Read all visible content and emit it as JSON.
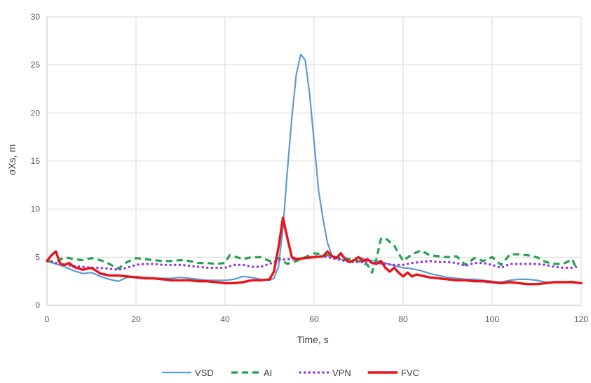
{
  "chart_data": {
    "type": "line",
    "title": "",
    "xlabel": "Time, s",
    "ylabel": "σXs, m",
    "xlim": [
      0,
      120
    ],
    "ylim": [
      0,
      30
    ],
    "xticks": [
      0,
      20,
      40,
      60,
      80,
      100,
      120
    ],
    "yticks": [
      0,
      5,
      10,
      15,
      20,
      25,
      30
    ],
    "grid": true,
    "legend_position": "bottom",
    "series": [
      {
        "name": "VSD",
        "color": "#5b9bd5",
        "style": "solid",
        "x": [
          0,
          2,
          4,
          6,
          8,
          10,
          12,
          14,
          16,
          18,
          20,
          22,
          24,
          26,
          28,
          30,
          32,
          34,
          36,
          38,
          40,
          42,
          44,
          46,
          48,
          50,
          51,
          52,
          53,
          54,
          55,
          56,
          57,
          58,
          59,
          60,
          61,
          62,
          63,
          64,
          66,
          68,
          70,
          72,
          74,
          76,
          78,
          80,
          82,
          84,
          86,
          88,
          90,
          92,
          94,
          96,
          98,
          100,
          102,
          104,
          106,
          108,
          110,
          112,
          114,
          116,
          118,
          120
        ],
        "y": [
          4.6,
          4.3,
          4.0,
          3.6,
          3.3,
          3.4,
          3.0,
          2.7,
          2.5,
          2.9,
          3.0,
          2.9,
          2.8,
          2.8,
          2.8,
          2.9,
          2.8,
          2.7,
          2.6,
          2.6,
          2.6,
          2.7,
          3.0,
          2.9,
          2.7,
          2.6,
          2.8,
          4.0,
          8.0,
          14.0,
          19.5,
          24.0,
          26.1,
          25.5,
          22.0,
          17.0,
          12.0,
          9.0,
          6.5,
          5.2,
          4.8,
          4.5,
          5.0,
          4.7,
          4.6,
          4.4,
          4.1,
          3.9,
          3.8,
          3.6,
          3.3,
          3.1,
          2.9,
          2.8,
          2.7,
          2.7,
          2.6,
          2.5,
          2.4,
          2.6,
          2.7,
          2.7,
          2.6,
          2.4,
          2.4,
          2.4,
          2.5,
          2.3
        ]
      },
      {
        "name": "AI",
        "color": "#22a24a",
        "style": "dashed",
        "x": [
          0,
          2,
          4,
          6,
          8,
          10,
          12,
          14,
          16,
          18,
          20,
          22,
          24,
          26,
          28,
          30,
          32,
          34,
          36,
          38,
          40,
          41,
          42,
          44,
          46,
          48,
          50,
          52,
          54,
          56,
          58,
          60,
          62,
          64,
          66,
          68,
          70,
          72,
          73,
          74,
          75,
          76,
          78,
          80,
          82,
          84,
          86,
          88,
          90,
          92,
          94,
          96,
          98,
          100,
          102,
          104,
          106,
          108,
          110,
          112,
          114,
          116,
          118,
          119
        ],
        "y": [
          4.6,
          4.5,
          5.0,
          4.8,
          4.7,
          4.9,
          4.7,
          4.3,
          3.8,
          4.5,
          4.9,
          4.8,
          4.7,
          4.6,
          4.6,
          4.7,
          4.6,
          4.4,
          4.4,
          4.3,
          4.4,
          5.2,
          5.1,
          4.8,
          5.0,
          5.0,
          4.6,
          4.9,
          4.3,
          4.6,
          5.0,
          5.4,
          5.3,
          5.1,
          4.9,
          4.8,
          4.6,
          4.2,
          3.4,
          4.8,
          6.9,
          7.0,
          6.2,
          4.6,
          5.3,
          5.7,
          5.2,
          5.1,
          5.0,
          5.1,
          4.2,
          4.9,
          4.6,
          5.0,
          4.2,
          5.3,
          5.3,
          5.2,
          5.0,
          4.5,
          4.3,
          4.3,
          4.8,
          3.7
        ]
      },
      {
        "name": "VPN",
        "color": "#9933dd",
        "style": "dotted",
        "x": [
          0,
          2,
          4,
          6,
          8,
          10,
          12,
          14,
          16,
          18,
          20,
          22,
          24,
          26,
          28,
          30,
          32,
          34,
          36,
          38,
          40,
          42,
          44,
          46,
          48,
          50,
          52,
          54,
          56,
          58,
          60,
          62,
          64,
          66,
          68,
          70,
          72,
          74,
          76,
          78,
          80,
          82,
          84,
          86,
          88,
          90,
          92,
          94,
          96,
          98,
          100,
          102,
          104,
          106,
          108,
          110,
          112,
          114,
          116,
          118,
          119
        ],
        "y": [
          4.6,
          4.4,
          4.2,
          4.1,
          4.0,
          3.9,
          3.9,
          3.8,
          3.7,
          3.9,
          4.2,
          4.3,
          4.3,
          4.2,
          4.2,
          4.2,
          4.1,
          4.0,
          3.9,
          3.9,
          3.9,
          4.2,
          4.2,
          4.0,
          4.0,
          4.3,
          4.7,
          4.8,
          4.8,
          4.9,
          5.1,
          5.1,
          4.9,
          4.7,
          4.5,
          4.5,
          4.5,
          4.4,
          4.3,
          4.2,
          4.2,
          4.4,
          4.5,
          4.6,
          4.5,
          4.5,
          4.4,
          4.1,
          4.4,
          4.4,
          4.2,
          3.9,
          4.3,
          4.3,
          4.3,
          4.3,
          4.2,
          4.0,
          3.9,
          3.9,
          4.0
        ]
      },
      {
        "name": "FVC",
        "color": "#e8131b",
        "style": "solid",
        "x": [
          0,
          1,
          2,
          3,
          4,
          5,
          6,
          8,
          10,
          12,
          14,
          16,
          18,
          20,
          22,
          24,
          26,
          28,
          30,
          32,
          34,
          36,
          38,
          40,
          42,
          44,
          46,
          48,
          50,
          51,
          52,
          53,
          54,
          55,
          56,
          58,
          60,
          62,
          63,
          64,
          65,
          66,
          67,
          68,
          69,
          70,
          71,
          72,
          73,
          74,
          75,
          76,
          77,
          78,
          79,
          80,
          81,
          82,
          83,
          84,
          86,
          88,
          90,
          92,
          94,
          96,
          98,
          100,
          102,
          104,
          106,
          108,
          110,
          112,
          114,
          116,
          118,
          120
        ],
        "y": [
          4.6,
          5.2,
          5.6,
          4.3,
          4.2,
          4.4,
          4.0,
          3.7,
          3.9,
          3.3,
          3.1,
          3.1,
          3.0,
          2.9,
          2.8,
          2.8,
          2.7,
          2.6,
          2.6,
          2.6,
          2.5,
          2.5,
          2.4,
          2.3,
          2.3,
          2.4,
          2.6,
          2.6,
          2.7,
          3.5,
          6.0,
          9.1,
          7.0,
          5.0,
          4.8,
          4.9,
          5.0,
          5.1,
          5.6,
          5.1,
          4.9,
          5.4,
          4.8,
          4.5,
          4.7,
          5.0,
          4.6,
          4.8,
          4.4,
          4.3,
          4.6,
          3.9,
          3.5,
          3.9,
          3.4,
          3.0,
          3.4,
          3.0,
          3.2,
          3.1,
          2.9,
          2.8,
          2.7,
          2.6,
          2.6,
          2.5,
          2.5,
          2.4,
          2.3,
          2.4,
          2.3,
          2.2,
          2.2,
          2.3,
          2.4,
          2.4,
          2.4,
          2.3
        ]
      }
    ]
  }
}
